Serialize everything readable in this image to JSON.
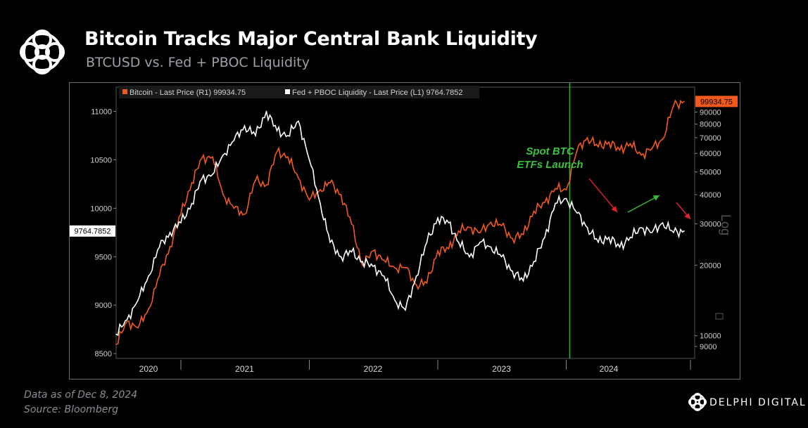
{
  "header": {
    "title": "Bitcoin Tracks Major Central Bank Liquidity",
    "subtitle": "BTCUSD vs. Fed + PBOC Liquidity"
  },
  "footer": {
    "date_note": "Data as of Dec 8, 2024",
    "source_note": "Source: Bloomberg",
    "brand": "DELPHI DIGITAL"
  },
  "chart_data": {
    "type": "line",
    "legend": [
      {
        "label": "Bitcoin - Last Price (R1) 99934.75",
        "color": "#f25a1d"
      },
      {
        "label": "Fed + PBOC Liquidity - Last Price (L1) 9764.7852",
        "color": "#ffffff"
      }
    ],
    "left_axis": {
      "ticks": [
        8500,
        9000,
        9500,
        10000,
        10500,
        11000
      ],
      "range": [
        8450,
        11250
      ]
    },
    "right_axis": {
      "scale": "log",
      "ticks": [
        9000,
        10000,
        20000,
        30000,
        40000,
        50000,
        60000,
        70000,
        80000,
        90000
      ],
      "tick_labels": [
        "9000",
        "10000",
        "20000",
        "30000",
        "40000",
        "50000",
        "60000",
        "70000",
        "80000",
        "90000"
      ],
      "range": [
        8000,
        115000
      ],
      "label": "Log"
    },
    "x_axis": {
      "labels": [
        "2020",
        "2021",
        "2022",
        "2023",
        "2024"
      ],
      "range": [
        "2020-07-01",
        "2024-12-31"
      ],
      "label_dates": [
        "2020-10-01",
        "2021-07-01",
        "2022-07-01",
        "2023-07-01",
        "2024-05-01"
      ],
      "separator_dates": [
        "2021-01-01",
        "2022-01-01",
        "2023-01-01",
        "2024-01-01"
      ]
    },
    "last_value_labels": {
      "bitcoin": "99934.75",
      "liquidity": "9764.7852"
    },
    "annotation": {
      "text": [
        "Spot BTC",
        "ETFs Launch"
      ],
      "date": "2024-01-11"
    },
    "series": [
      {
        "name": "Fed + PBOC Liquidity",
        "axis": "left",
        "color": "#ffffff",
        "x": [
          "2020-07-01",
          "2020-08-01",
          "2020-09-01",
          "2020-10-01",
          "2020-11-01",
          "2020-12-01",
          "2021-01-01",
          "2021-02-01",
          "2021-03-01",
          "2021-04-01",
          "2021-05-01",
          "2021-06-01",
          "2021-07-01",
          "2021-08-01",
          "2021-09-01",
          "2021-10-01",
          "2021-11-01",
          "2021-12-01",
          "2022-01-01",
          "2022-02-01",
          "2022-03-01",
          "2022-04-01",
          "2022-05-01",
          "2022-06-01",
          "2022-07-01",
          "2022-08-01",
          "2022-09-01",
          "2022-10-01",
          "2022-11-01",
          "2022-12-01",
          "2023-01-01",
          "2023-02-01",
          "2023-03-01",
          "2023-04-01",
          "2023-05-01",
          "2023-06-01",
          "2023-07-01",
          "2023-08-01",
          "2023-09-01",
          "2023-10-01",
          "2023-11-01",
          "2023-12-01",
          "2024-01-01",
          "2024-02-01",
          "2024-03-01",
          "2024-04-01",
          "2024-05-01",
          "2024-06-01",
          "2024-07-01",
          "2024-08-01",
          "2024-09-01",
          "2024-10-01",
          "2024-11-01",
          "2024-12-01"
        ],
        "values": [
          8700,
          8850,
          9050,
          9300,
          9600,
          9750,
          9850,
          10050,
          10300,
          10350,
          10550,
          10700,
          10850,
          10750,
          11000,
          10800,
          10750,
          10900,
          10500,
          10050,
          9650,
          9500,
          9550,
          9450,
          9400,
          9300,
          9050,
          8950,
          9300,
          9650,
          9900,
          9850,
          9650,
          9500,
          9650,
          9600,
          9500,
          9350,
          9250,
          9450,
          9700,
          10050,
          10100,
          9950,
          9800,
          9650,
          9700,
          9600,
          9700,
          9800,
          9750,
          9850,
          9750,
          9765
        ]
      },
      {
        "name": "Bitcoin",
        "axis": "right",
        "color": "#f25a1d",
        "x": [
          "2020-07-01",
          "2020-08-01",
          "2020-09-01",
          "2020-10-01",
          "2020-11-01",
          "2020-12-01",
          "2021-01-01",
          "2021-02-01",
          "2021-03-01",
          "2021-04-01",
          "2021-05-01",
          "2021-06-01",
          "2021-07-01",
          "2021-08-01",
          "2021-09-01",
          "2021-10-01",
          "2021-11-01",
          "2021-12-01",
          "2022-01-01",
          "2022-02-01",
          "2022-03-01",
          "2022-04-01",
          "2022-05-01",
          "2022-06-01",
          "2022-07-01",
          "2022-08-01",
          "2022-09-01",
          "2022-10-01",
          "2022-11-01",
          "2022-12-01",
          "2023-01-01",
          "2023-02-01",
          "2023-03-01",
          "2023-04-01",
          "2023-05-01",
          "2023-06-01",
          "2023-07-01",
          "2023-08-01",
          "2023-09-01",
          "2023-10-01",
          "2023-11-01",
          "2023-12-01",
          "2024-01-01",
          "2024-02-01",
          "2024-03-01",
          "2024-04-01",
          "2024-05-01",
          "2024-06-01",
          "2024-07-01",
          "2024-08-01",
          "2024-09-01",
          "2024-10-01",
          "2024-11-01",
          "2024-12-01"
        ],
        "values": [
          9200,
          11500,
          10800,
          13000,
          18000,
          24000,
          33000,
          45000,
          57000,
          58000,
          40000,
          35000,
          33000,
          46000,
          44000,
          61000,
          58000,
          47000,
          38000,
          42000,
          45000,
          40000,
          30000,
          20000,
          23000,
          21000,
          19500,
          19500,
          16500,
          16800,
          23000,
          23500,
          28000,
          29000,
          27500,
          30500,
          29500,
          26000,
          27000,
          34000,
          37000,
          42500,
          42000,
          62000,
          70000,
          64000,
          67000,
          62000,
          66000,
          59000,
          63000,
          69000,
          96000,
          99935
        ]
      }
    ],
    "arrows": [
      {
        "color": "#e0202a",
        "direction": "down"
      },
      {
        "color": "#33bb33",
        "direction": "up"
      },
      {
        "color": "#e0202a",
        "direction": "down"
      }
    ]
  },
  "colors": {
    "bitcoin": "#f25a1d",
    "liquidity": "#ffffff",
    "etf_line": "#2fb52f",
    "annotation_text": "#3cc23c"
  }
}
